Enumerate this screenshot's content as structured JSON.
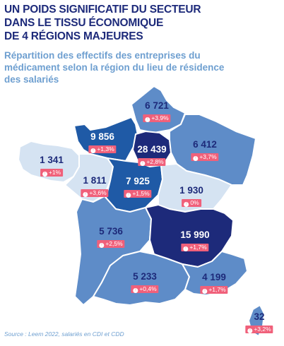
{
  "title": [
    "UN POIDS SIGNIFICATIF DU SECTEUR",
    "DANS LE TISSU ÉCONOMIQUE",
    "DE 4 RÉGIONS MAJEURES"
  ],
  "subtitle": [
    "Répartition des effectifs des entreprises du",
    "médicament selon la région du lieu de résidence",
    "des salariés"
  ],
  "colors": {
    "title": "#1d2a7a",
    "subtitle": "#6e9fd0",
    "badge": "#f0607a",
    "shade_darkest": "#1d2a7a",
    "shade_dark": "#1f5aa6",
    "shade_mid": "#5e8cc8",
    "shade_light": "#d5e3f2"
  },
  "regions": [
    {
      "id": "hauts-de-france",
      "value": "6 721",
      "change": "+3,9%"
    },
    {
      "id": "normandie",
      "value": "9 856",
      "change": "+1,3%"
    },
    {
      "id": "ile-de-france",
      "value": "28 439",
      "change": "+2,8%"
    },
    {
      "id": "grand-est",
      "value": "6 412",
      "change": "+3,7%"
    },
    {
      "id": "bretagne",
      "value": "1 341",
      "change": "+1%"
    },
    {
      "id": "pays-de-la-loire",
      "value": "1 811",
      "change": "+3,6%"
    },
    {
      "id": "centre-val-de-loire",
      "value": "7 925",
      "change": "+1,5%"
    },
    {
      "id": "bourgogne-franche-comte",
      "value": "1 930",
      "change": "0%"
    },
    {
      "id": "nouvelle-aquitaine",
      "value": "5 736",
      "change": "+2,5%"
    },
    {
      "id": "auvergne-rhone-alpes",
      "value": "15 990",
      "change": "+1,7%"
    },
    {
      "id": "occitanie",
      "value": "5 233",
      "change": "+0,4%"
    },
    {
      "id": "paca",
      "value": "4 199",
      "change": "+1,7%"
    },
    {
      "id": "corse",
      "value": "32",
      "change": "+3,2%"
    }
  ],
  "source": "Source : Leem 2022, salariés en CDI et CDD"
}
